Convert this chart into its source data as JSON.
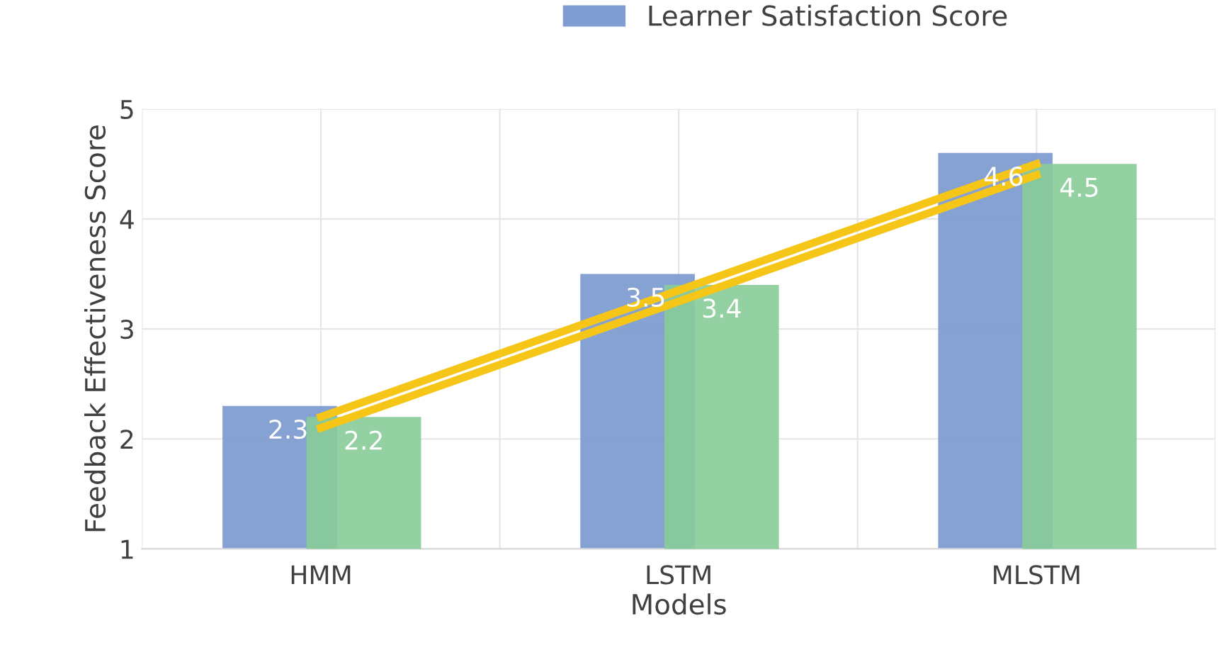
{
  "chart_data": {
    "type": "bar",
    "xlabel": "Models",
    "ylabel": "Feedback Effectiveness Score",
    "categories": [
      "HMM",
      "LSTM",
      "MLSTM"
    ],
    "series": [
      {
        "name": "Learner Satisfaction Score",
        "color": "#7f9dd0",
        "values": [
          2.3,
          3.5,
          4.6
        ],
        "value_labels": [
          "2.3",
          "3.5",
          "4.6"
        ]
      },
      {
        "color": "#88cc98",
        "values": [
          2.2,
          3.4,
          4.5
        ],
        "value_labels": [
          "2.2",
          "3.4",
          "4.5"
        ]
      },
      {
        "type": "line",
        "color": "#f5c518",
        "values": [
          2.2,
          3.35,
          4.5
        ]
      },
      {
        "type": "line",
        "color": "#f5c518",
        "values": [
          2.1,
          3.25,
          4.4
        ]
      }
    ],
    "ylim": [
      1,
      5
    ],
    "yticks": [
      1,
      2,
      3,
      4,
      5
    ],
    "grid": true,
    "legend": "top right",
    "marker": "none",
    "line_style": "solid"
  }
}
